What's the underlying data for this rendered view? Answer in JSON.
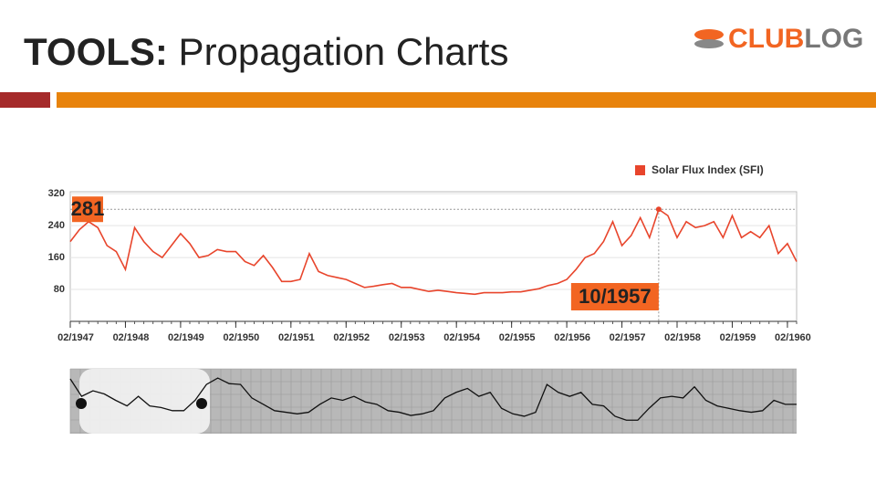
{
  "slide": {
    "title_bold": "TOOLS:",
    "title_rest": " Propagation Charts",
    "logo": {
      "first": "CLUB",
      "second": "LOG"
    }
  },
  "chart_data": {
    "type": "line",
    "x": [
      "02/1947",
      "04/1947",
      "06/1947",
      "08/1947",
      "10/1947",
      "12/1947",
      "02/1948",
      "04/1948",
      "06/1948",
      "08/1948",
      "10/1948",
      "12/1948",
      "02/1949",
      "04/1949",
      "06/1949",
      "08/1949",
      "10/1949",
      "12/1949",
      "02/1950",
      "04/1950",
      "06/1950",
      "08/1950",
      "10/1950",
      "12/1950",
      "02/1951",
      "04/1951",
      "06/1951",
      "08/1951",
      "10/1951",
      "12/1951",
      "02/1952",
      "04/1952",
      "06/1952",
      "08/1952",
      "10/1952",
      "12/1952",
      "02/1953",
      "04/1953",
      "06/1953",
      "08/1953",
      "10/1953",
      "12/1953",
      "02/1954",
      "04/1954",
      "06/1954",
      "08/1954",
      "10/1954",
      "12/1954",
      "02/1955",
      "04/1955",
      "06/1955",
      "08/1955",
      "10/1955",
      "12/1955",
      "02/1956",
      "04/1956",
      "06/1956",
      "08/1956",
      "10/1956",
      "12/1956",
      "02/1957",
      "04/1957",
      "06/1957",
      "08/1957",
      "10/1957",
      "12/1957",
      "02/1958",
      "04/1958",
      "06/1958",
      "08/1958",
      "10/1958",
      "12/1958",
      "02/1959",
      "04/1959",
      "06/1959",
      "08/1959",
      "10/1959",
      "12/1959",
      "02/1960",
      "04/1960"
    ],
    "series": [
      {
        "name": "Solar Flux Index (SFI)",
        "color": "#e8452c",
        "values": [
          200,
          230,
          250,
          235,
          190,
          175,
          130,
          235,
          200,
          175,
          160,
          190,
          220,
          195,
          160,
          165,
          180,
          175,
          175,
          150,
          140,
          165,
          135,
          100,
          100,
          105,
          170,
          125,
          115,
          110,
          105,
          95,
          85,
          88,
          92,
          95,
          85,
          85,
          80,
          75,
          78,
          75,
          72,
          70,
          68,
          72,
          72,
          72,
          74,
          74,
          78,
          82,
          90,
          95,
          105,
          130,
          160,
          170,
          200,
          250,
          190,
          215,
          260,
          210,
          281,
          265,
          210,
          250,
          235,
          240,
          250,
          210,
          265,
          210,
          225,
          210,
          240,
          170,
          195,
          150
        ]
      }
    ],
    "ylim": [
      0,
      325
    ],
    "yticks": [
      80,
      160,
      240,
      320
    ],
    "xticks": [
      "02/1947",
      "02/1948",
      "02/1949",
      "02/1950",
      "02/1951",
      "02/1952",
      "02/1953",
      "02/1954",
      "02/1955",
      "02/1956",
      "02/1957",
      "02/1958",
      "02/1959",
      "02/1960"
    ],
    "annotations": {
      "y_label": 281,
      "x_label": "10/1957"
    },
    "legend": "top-right",
    "navigator": {
      "color": "#111111",
      "values": [
        62,
        40,
        47,
        43,
        35,
        28,
        40,
        28,
        26,
        22,
        22,
        35,
        55,
        63,
        56,
        55,
        38,
        30,
        22,
        20,
        18,
        20,
        30,
        38,
        35,
        40,
        33,
        30,
        22,
        20,
        16,
        18,
        22,
        38,
        45,
        50,
        40,
        45,
        25,
        18,
        15,
        20,
        55,
        45,
        40,
        45,
        30,
        28,
        15,
        10,
        10,
        25,
        38,
        40,
        38,
        52,
        35,
        28,
        25,
        22,
        20,
        22,
        35,
        30,
        30
      ]
    }
  }
}
